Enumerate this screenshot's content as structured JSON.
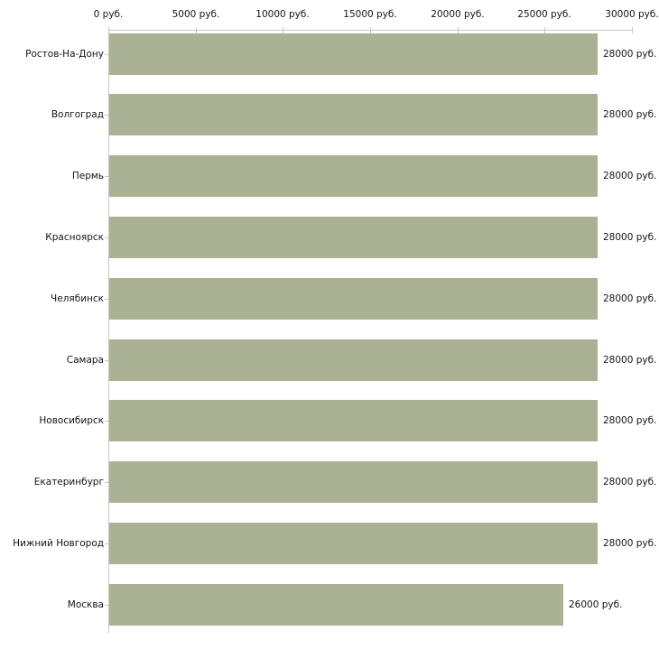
{
  "chart_data": {
    "type": "bar",
    "orientation": "horizontal",
    "title": "",
    "categories": [
      "Ростов-На-Дону",
      "Волгоград",
      "Пермь",
      "Красноярск",
      "Челябинск",
      "Самара",
      "Новосибирск",
      "Екатеринбург",
      "Нижний Новгород",
      "Москва"
    ],
    "values": [
      28000,
      28000,
      28000,
      28000,
      28000,
      28000,
      28000,
      28000,
      28000,
      26000
    ],
    "value_labels": [
      "28000 руб.",
      "28000 руб.",
      "28000 руб.",
      "28000 руб.",
      "28000 руб.",
      "28000 руб.",
      "28000 руб.",
      "28000 руб.",
      "28000 руб.",
      "26000 руб."
    ],
    "unit": "руб.",
    "xlabel": "",
    "ylabel": "",
    "xlim": [
      0,
      30000
    ],
    "x_ticks": [
      {
        "value": 0,
        "label": "0 руб."
      },
      {
        "value": 5000,
        "label": "5000 руб."
      },
      {
        "value": 10000,
        "label": "10000 руб."
      },
      {
        "value": 15000,
        "label": "15000 руб."
      },
      {
        "value": 20000,
        "label": "20000 руб."
      },
      {
        "value": 25000,
        "label": "25000 руб."
      },
      {
        "value": 30000,
        "label": "30000 руб."
      }
    ],
    "legend": "none",
    "grid": false,
    "axis_position": "top",
    "colors": {
      "bar": "#abb293",
      "axis_line": "#c8c8c8",
      "tick": "#c9c9aa",
      "text": "#141414",
      "background": "#ffffff"
    }
  }
}
